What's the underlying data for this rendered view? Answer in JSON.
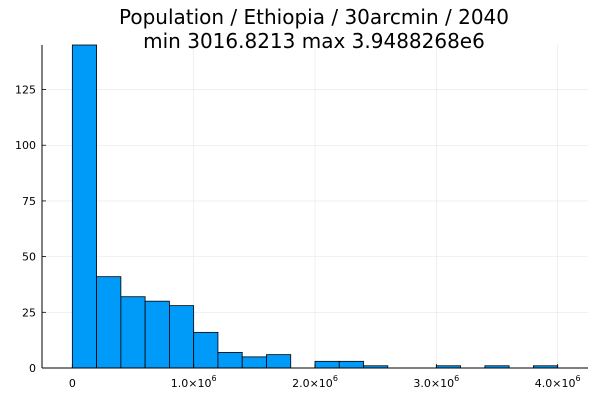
{
  "chart_data": {
    "type": "bar",
    "title_line1": "Population / Ethiopia / 30arcmin / 2040",
    "title_line2": "min 3016.8213  max 3.9488268e6",
    "xlabel": "",
    "ylabel": "",
    "grid": true,
    "legend": "none",
    "bin_width": 200000,
    "bins": [
      {
        "x0": 0,
        "x1": 200000,
        "count": 145
      },
      {
        "x0": 200000,
        "x1": 400000,
        "count": 41
      },
      {
        "x0": 400000,
        "x1": 600000,
        "count": 32
      },
      {
        "x0": 600000,
        "x1": 800000,
        "count": 30
      },
      {
        "x0": 800000,
        "x1": 1000000,
        "count": 28
      },
      {
        "x0": 1000000,
        "x1": 1200000,
        "count": 16
      },
      {
        "x0": 1200000,
        "x1": 1400000,
        "count": 7
      },
      {
        "x0": 1400000,
        "x1": 1600000,
        "count": 5
      },
      {
        "x0": 1600000,
        "x1": 1800000,
        "count": 6
      },
      {
        "x0": 2000000,
        "x1": 2200000,
        "count": 3
      },
      {
        "x0": 2200000,
        "x1": 2400000,
        "count": 3
      },
      {
        "x0": 2400000,
        "x1": 2600000,
        "count": 1
      },
      {
        "x0": 3000000,
        "x1": 3200000,
        "count": 1
      },
      {
        "x0": 3400000,
        "x1": 3600000,
        "count": 1
      },
      {
        "x0": 3800000,
        "x1": 4000000,
        "count": 1
      }
    ],
    "xlim": [
      -250000,
      4250000
    ],
    "ylim": [
      0,
      145
    ],
    "x_ticks": [
      {
        "value": 0,
        "label": "0"
      },
      {
        "value": 1000000,
        "label": "1.0×10",
        "exp": "6"
      },
      {
        "value": 2000000,
        "label": "2.0×10",
        "exp": "6"
      },
      {
        "value": 3000000,
        "label": "3.0×10",
        "exp": "6"
      },
      {
        "value": 4000000,
        "label": "4.0×10",
        "exp": "6"
      }
    ],
    "y_ticks": [
      {
        "value": 0,
        "label": "0"
      },
      {
        "value": 25,
        "label": "25"
      },
      {
        "value": 50,
        "label": "50"
      },
      {
        "value": 75,
        "label": "75"
      },
      {
        "value": 100,
        "label": "100"
      },
      {
        "value": 125,
        "label": "125"
      }
    ],
    "bar_color": "#009AF9",
    "bar_edge_color": "#000000",
    "grid_color": "#e6e6e6"
  }
}
